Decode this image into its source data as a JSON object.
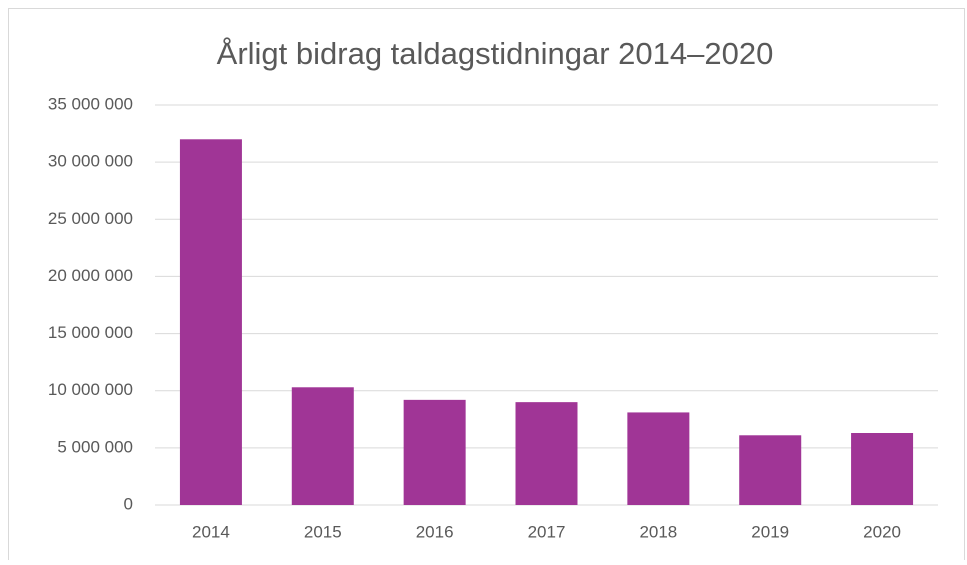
{
  "chart_data": {
    "type": "bar",
    "title": "Årligt bidrag taldagstidningar 2014–2020",
    "categories": [
      "2014",
      "2015",
      "2016",
      "2017",
      "2018",
      "2019",
      "2020"
    ],
    "values": [
      32000000,
      10300000,
      9200000,
      9000000,
      8100000,
      6100000,
      6300000
    ],
    "color": "#a03596",
    "ylim": [
      0,
      35000000
    ],
    "yticks": [
      0,
      {
        "value": 5000000,
        "label": "5 000 000"
      },
      {
        "value": 10000000,
        "label": "10 000 000"
      },
      {
        "value": 15000000,
        "label": "15 000 000"
      },
      {
        "value": 20000000,
        "label": "20 000 000"
      },
      {
        "value": 25000000,
        "label": "25 000 000"
      },
      {
        "value": 30000000,
        "label": "30 000 000"
      },
      {
        "value": 35000000,
        "label": "35 000 000"
      }
    ],
    "grid": true
  }
}
